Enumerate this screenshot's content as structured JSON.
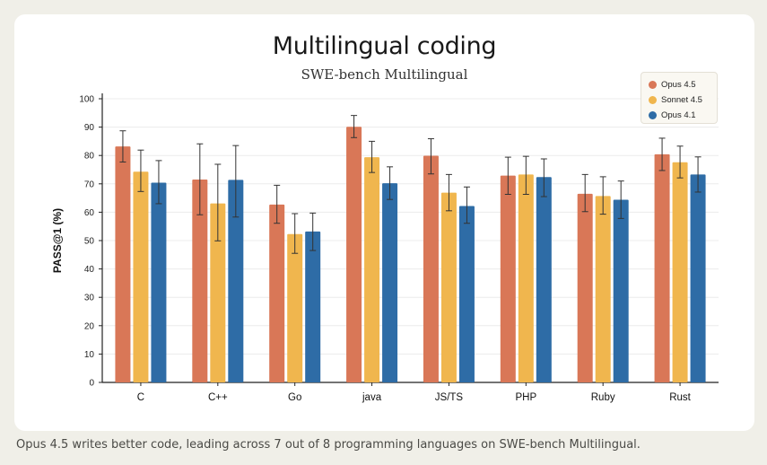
{
  "chart_data": {
    "type": "bar",
    "title": "Multilingual coding",
    "subtitle": "SWE-bench Multilingual",
    "xlabel": "",
    "ylabel": "PASS@1 (%)",
    "ylim": [
      0,
      100
    ],
    "yticks": [
      0,
      10,
      20,
      30,
      40,
      50,
      60,
      70,
      80,
      90,
      100
    ],
    "grid": true,
    "legend_position": "top-right",
    "categories": [
      "C",
      "C++",
      "Go",
      "java",
      "JS/TS",
      "PHP",
      "Ruby",
      "Rust"
    ],
    "series": [
      {
        "name": "Opus 4.5",
        "color": "#d97757",
        "values": [
          83.2,
          71.5,
          62.7,
          90.1,
          79.9,
          72.9,
          66.5,
          80.4
        ],
        "errors": [
          [
            77.7,
            88.7
          ],
          [
            59.1,
            84.1
          ],
          [
            56.1,
            69.5
          ],
          [
            86.3,
            94.1
          ],
          [
            73.5,
            85.9
          ],
          [
            66.3,
            79.4
          ],
          [
            60.2,
            73.3
          ],
          [
            74.7,
            86.1
          ]
        ]
      },
      {
        "name": "Sonnet 4.5",
        "color": "#f0b64e",
        "values": [
          74.3,
          63.1,
          52.3,
          79.4,
          66.9,
          73.3,
          65.7,
          77.6
        ],
        "errors": [
          [
            67.3,
            81.9
          ],
          [
            49.9,
            76.9
          ],
          [
            45.5,
            59.5
          ],
          [
            74.0,
            85.0
          ],
          [
            60.5,
            73.3
          ],
          [
            66.3,
            79.7
          ],
          [
            59.3,
            72.5
          ],
          [
            72.1,
            83.3
          ]
        ]
      },
      {
        "name": "Opus 4.1",
        "color": "#2e6ca6",
        "values": [
          70.4,
          71.4,
          53.2,
          70.2,
          62.2,
          72.4,
          64.4,
          73.3
        ],
        "errors": [
          [
            63.0,
            78.2
          ],
          [
            58.3,
            83.5
          ],
          [
            46.5,
            59.7
          ],
          [
            64.5,
            76.0
          ],
          [
            56.1,
            68.9
          ],
          [
            65.5,
            78.8
          ],
          [
            57.8,
            71.0
          ],
          [
            67.1,
            79.5
          ]
        ]
      }
    ]
  },
  "caption": "Opus 4.5 writes better code, leading across 7 out of 8 programming languages on SWE-bench Multilingual."
}
